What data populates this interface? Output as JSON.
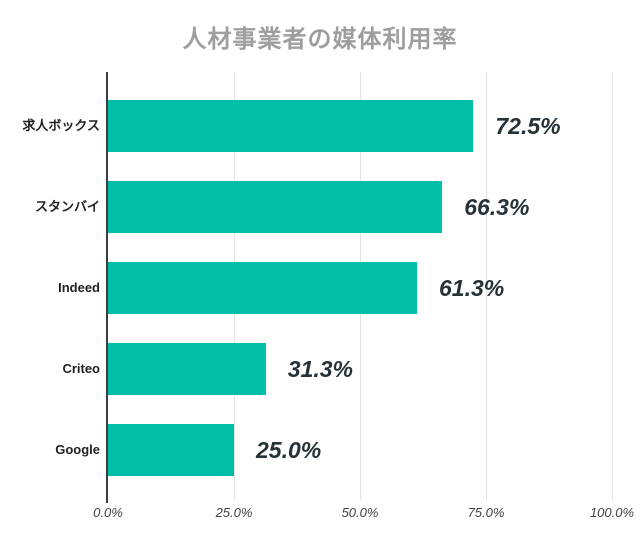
{
  "chart_data": {
    "type": "bar",
    "orientation": "horizontal",
    "title": "人材事業者の媒体利用率",
    "categories": [
      "求人ボックス",
      "スタンバイ",
      "Indeed",
      "Criteo",
      "Google"
    ],
    "values": [
      72.5,
      66.3,
      61.3,
      31.3,
      25.0
    ],
    "value_labels": [
      "72.5%",
      "66.3%",
      "61.3%",
      "31.3%",
      "25.0%"
    ],
    "xlabel": "",
    "ylabel": "",
    "xlim": [
      0,
      100
    ],
    "x_ticks": [
      "0.0%",
      "25.0%",
      "50.0%",
      "75.0%",
      "100.0%"
    ],
    "grid": "vertical-only",
    "legend": "none",
    "colors": {
      "bar": "#00BFA6",
      "title": "#9E9E9E",
      "category_label": "#212121",
      "value_label": "#263238",
      "axis_line": "#3C3C3C",
      "gridline": "#E3E3E3",
      "tick_label": "#424242",
      "background": "#FFFFFF"
    }
  }
}
